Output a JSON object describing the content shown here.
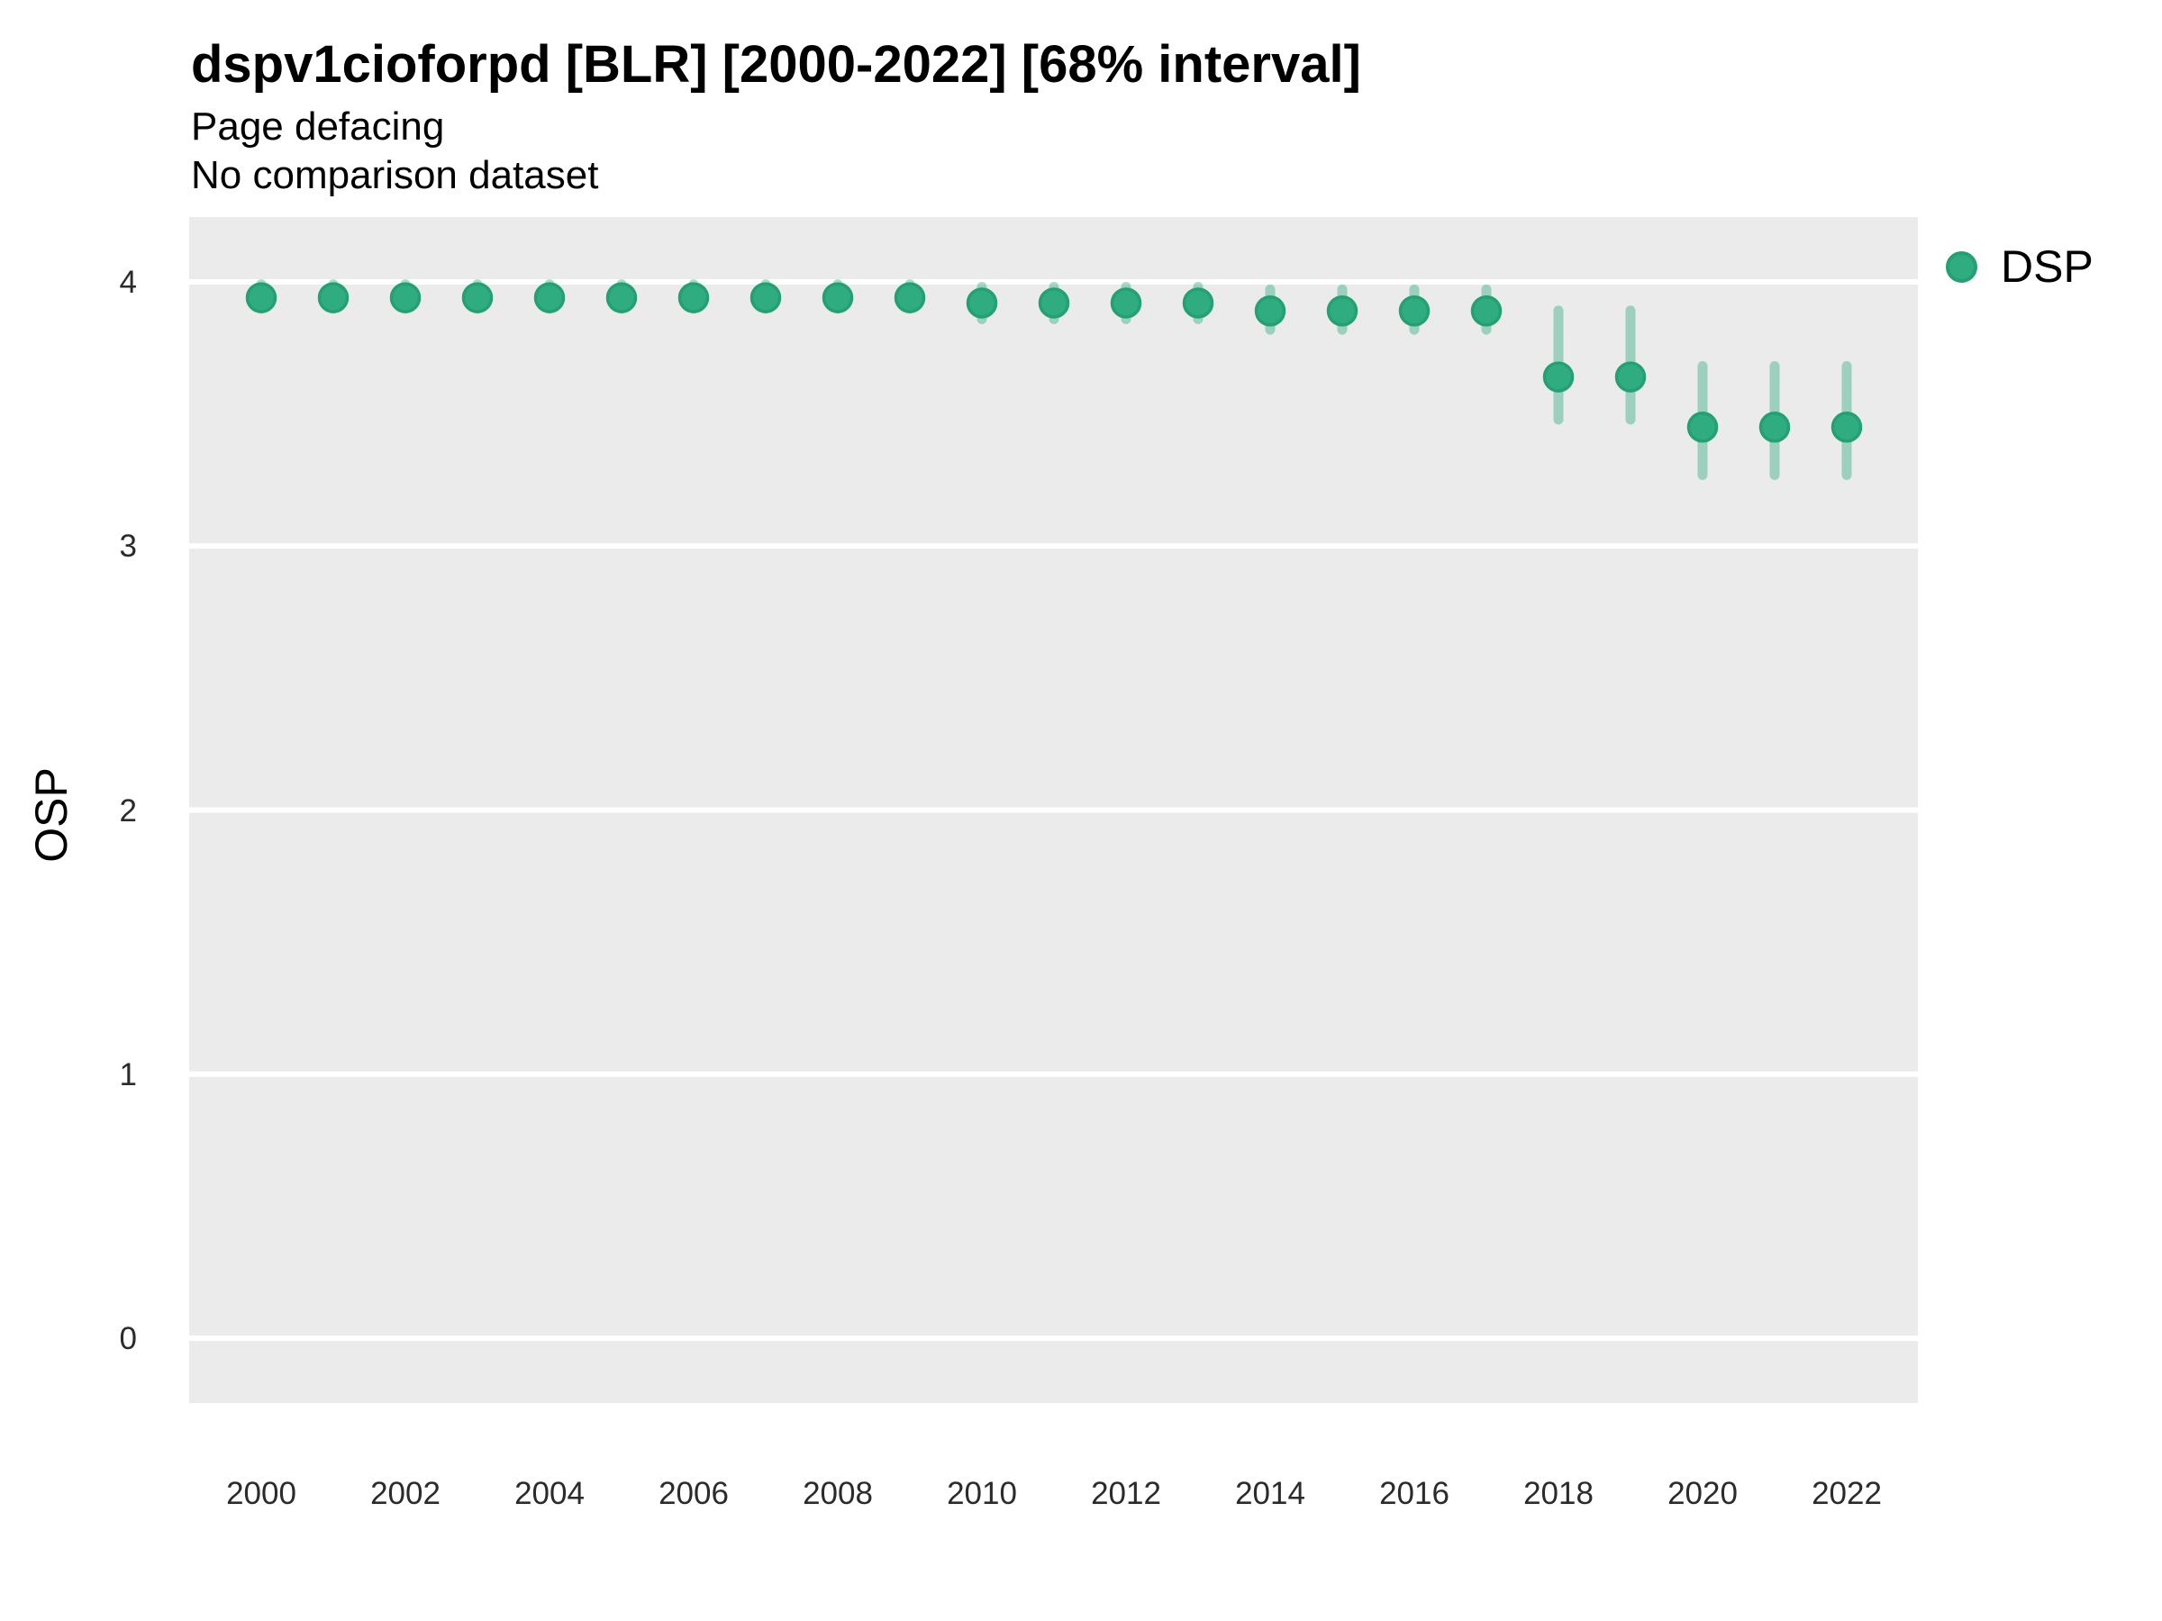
{
  "header": {
    "title": "dspv1cioforpd [BLR] [2000-2022] [68% interval]",
    "subtitle1": "Page defacing",
    "subtitle2": "No comparison dataset"
  },
  "legend": {
    "position": "right",
    "items": [
      {
        "label": "DSP",
        "marker": "circle-icon"
      }
    ]
  },
  "colors": {
    "point_fill": "#2FAD80",
    "point_stroke": "#23A173",
    "interval_bar": "rgba(43,171,126,0.42)",
    "panel_background": "#EBEBEB",
    "gridline": "#FFFFFF",
    "text": "#000000",
    "tick_text": "#2b2b2b"
  },
  "chart_data": {
    "type": "scatter",
    "title": "dspv1cioforpd [BLR] [2000-2022] [68% interval]",
    "subtitle": "Page defacing",
    "note": "No comparison dataset",
    "xlabel": "",
    "ylabel": "OSP",
    "interval": "68%",
    "grid": "major-horizontal-only",
    "legend_position": "right",
    "xlim": [
      1999,
      2023
    ],
    "ylim": [
      -0.25,
      4.25
    ],
    "x_ticks": [
      "2000",
      "2002",
      "2004",
      "2006",
      "2008",
      "2010",
      "2012",
      "2014",
      "2016",
      "2018",
      "2020",
      "2022"
    ],
    "y_ticks": [
      "0",
      "1",
      "2",
      "3",
      "4"
    ],
    "series": [
      {
        "name": "DSP",
        "years": [
          2000,
          2001,
          2002,
          2003,
          2004,
          2005,
          2006,
          2007,
          2008,
          2009,
          2010,
          2011,
          2012,
          2013,
          2014,
          2015,
          2016,
          2017,
          2018,
          2019,
          2020,
          2021,
          2022
        ],
        "values": [
          3.94,
          3.94,
          3.94,
          3.94,
          3.94,
          3.94,
          3.94,
          3.94,
          3.94,
          3.94,
          3.92,
          3.92,
          3.92,
          3.92,
          3.89,
          3.89,
          3.89,
          3.89,
          3.64,
          3.64,
          3.45,
          3.45,
          3.45
        ],
        "lo": [
          3.88,
          3.88,
          3.88,
          3.88,
          3.88,
          3.88,
          3.88,
          3.88,
          3.88,
          3.88,
          3.84,
          3.84,
          3.84,
          3.84,
          3.8,
          3.8,
          3.8,
          3.8,
          3.46,
          3.46,
          3.25,
          3.25,
          3.25
        ],
        "hi": [
          4.01,
          4.01,
          4.01,
          4.01,
          4.01,
          4.01,
          4.01,
          4.01,
          4.01,
          4.01,
          4.0,
          4.0,
          4.0,
          4.0,
          3.99,
          3.99,
          3.99,
          3.99,
          3.91,
          3.91,
          3.7,
          3.7,
          3.7
        ]
      }
    ]
  }
}
